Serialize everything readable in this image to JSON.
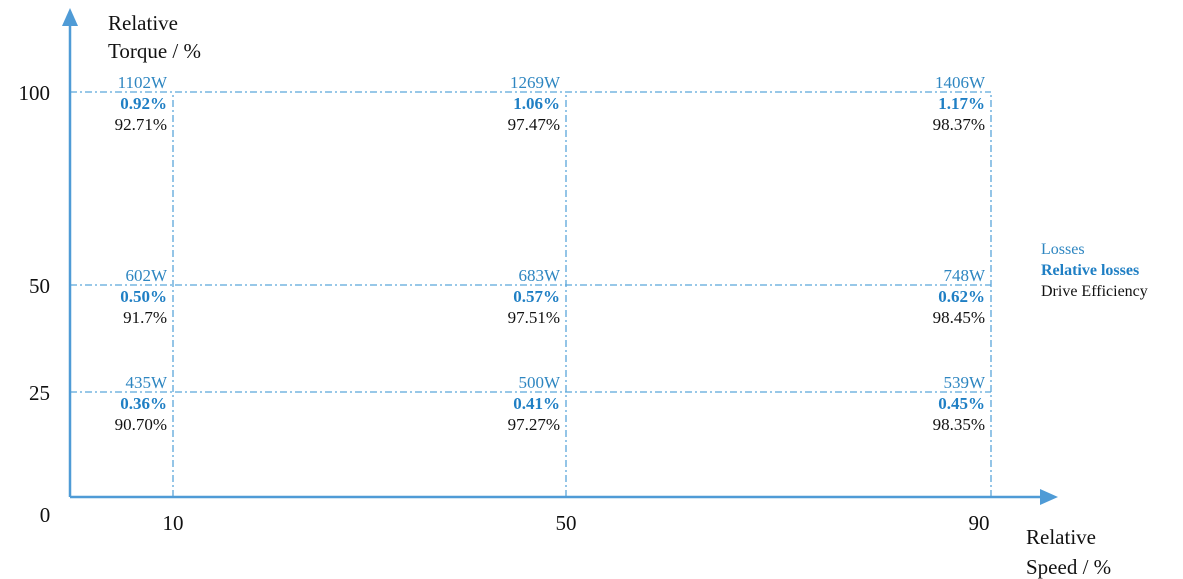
{
  "chart_data": {
    "type": "table",
    "ylabel_line1": "Relative",
    "ylabel_line2": "Torque / %",
    "xlabel_line1": "Relative",
    "xlabel_line2": "Speed / %",
    "origin_label": "0",
    "x_ticks": [
      10,
      50,
      90
    ],
    "y_ticks": [
      25,
      50,
      100
    ],
    "x_range": [
      0,
      90
    ],
    "y_range": [
      0,
      100
    ],
    "grid": "dash-dot at each operating point",
    "legend": {
      "placement": "right",
      "items": [
        {
          "label": "Losses",
          "color": "#2e86c1",
          "bold": false
        },
        {
          "label": "Relative losses",
          "color": "#1f7fc4",
          "bold": true
        },
        {
          "label": "Drive Efficiency",
          "color": "#111111",
          "bold": false
        }
      ]
    },
    "points": [
      {
        "speed": 10,
        "torque": 100,
        "losses": "1102W",
        "relative_losses": "0.92%",
        "efficiency": "92.71%"
      },
      {
        "speed": 50,
        "torque": 100,
        "losses": "1269W",
        "relative_losses": "1.06%",
        "efficiency": "97.47%"
      },
      {
        "speed": 90,
        "torque": 100,
        "losses": "1406W",
        "relative_losses": "1.17%",
        "efficiency": "98.37%"
      },
      {
        "speed": 10,
        "torque": 50,
        "losses": "602W",
        "relative_losses": "0.50%",
        "efficiency": "91.7%"
      },
      {
        "speed": 50,
        "torque": 50,
        "losses": "683W",
        "relative_losses": "0.57%",
        "efficiency": "97.51%"
      },
      {
        "speed": 90,
        "torque": 50,
        "losses": "748W",
        "relative_losses": "0.62%",
        "efficiency": "98.45%"
      },
      {
        "speed": 10,
        "torque": 25,
        "losses": "435W",
        "relative_losses": "0.36%",
        "efficiency": "90.70%"
      },
      {
        "speed": 50,
        "torque": 25,
        "losses": "500W",
        "relative_losses": "0.41%",
        "efficiency": "97.27%"
      },
      {
        "speed": 90,
        "torque": 25,
        "losses": "539W",
        "relative_losses": "0.45%",
        "efficiency": "98.35%"
      }
    ]
  },
  "colors": {
    "axis": "#4f9bd6",
    "grid": "#5aa6da",
    "losses": "#2e86c1",
    "relative_losses": "#1f7fc4",
    "efficiency": "#111111",
    "tick_text": "#111111"
  }
}
